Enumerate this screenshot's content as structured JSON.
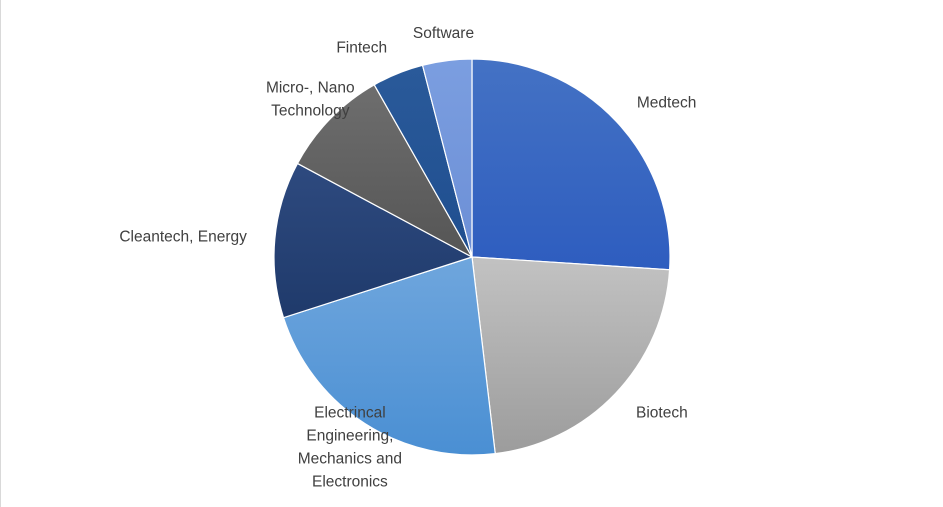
{
  "chart_data": {
    "type": "pie",
    "title": "",
    "slices": [
      {
        "label": "Medtech",
        "lines": [
          "Medtech"
        ],
        "value": 28.5,
        "color": "#4472c4",
        "color2": "#2e5dbf"
      },
      {
        "label": "Biotech",
        "lines": [
          "Biotech"
        ],
        "value": 24.2,
        "color": "#c2c2c2",
        "color2": "#9c9c9c"
      },
      {
        "label": "Electrincal Engineering, Mechanics and Electronics",
        "lines": [
          "Electrincal",
          "Engineering,",
          "Mechanics and",
          "Electronics"
        ],
        "value": 24.0,
        "color": "#6fa6dd",
        "color2": "#4a8fd3"
      },
      {
        "label": "Cleantech, Energy",
        "lines": [
          "Cleantech, Energy"
        ],
        "value": 14.0,
        "color": "#2e4a7f",
        "color2": "#1f3a6b"
      },
      {
        "label": "Micro-, Nano Technology",
        "lines": [
          "Micro-, Nano",
          "Technology"
        ],
        "value": 9.8,
        "color": "#6e6e6e",
        "color2": "#555555"
      },
      {
        "label": "Fintech",
        "lines": [
          "Fintech"
        ],
        "value": 4.6,
        "color": "#2a5a9a",
        "color2": "#1f4e8f"
      },
      {
        "label": "Software",
        "lines": [
          "Software"
        ],
        "value": 4.4,
        "color": "#7b9ee0",
        "color2": "#6c8fd6"
      }
    ],
    "legend": "none",
    "data_labels": "category-name-outside"
  }
}
